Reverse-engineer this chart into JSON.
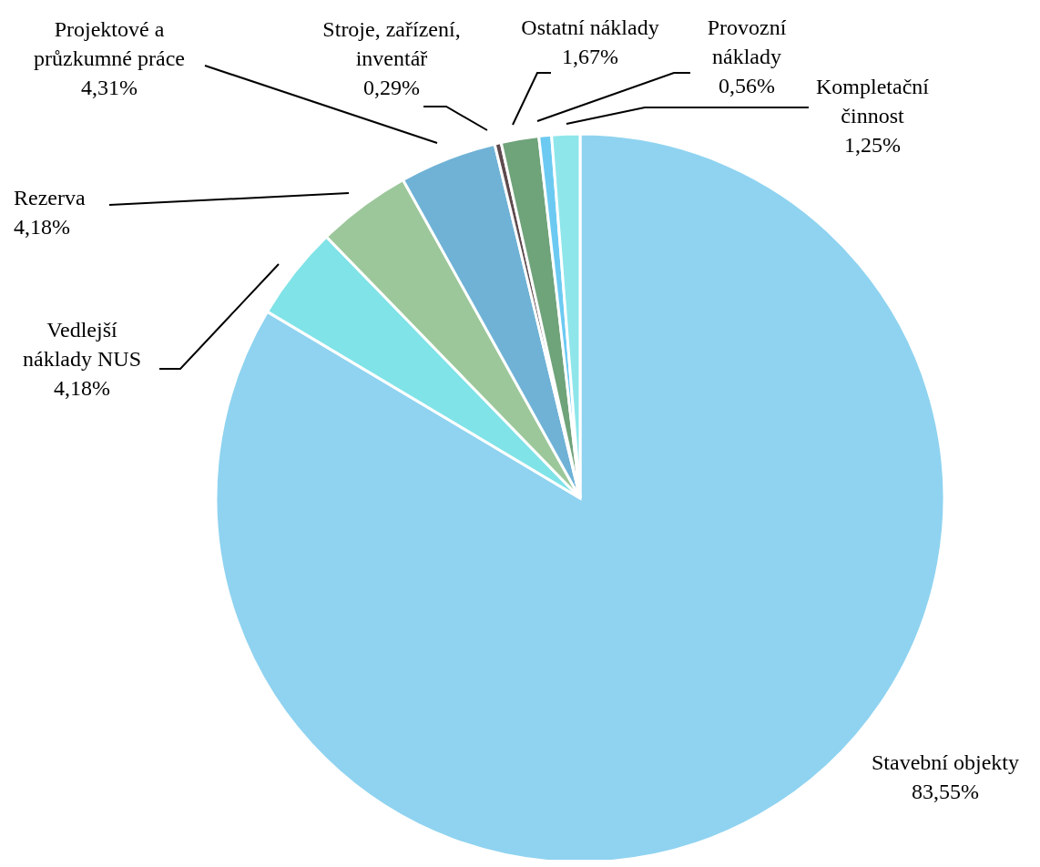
{
  "chart_data": {
    "type": "pie",
    "categories": [
      "Stavební objekty",
      "Vedlejší náklady NUS",
      "Rezerva",
      "Projektové a průzkumné práce",
      "Stroje, zařízení, inventář",
      "Ostatní náklady",
      "Provozní náklady",
      "Kompletační činnost"
    ],
    "values": [
      83.55,
      4.18,
      4.18,
      4.31,
      0.29,
      1.67,
      0.56,
      1.25
    ],
    "value_labels": [
      "83,55%",
      "4,18%",
      "4,18%",
      "4,31%",
      "0,29%",
      "1,67%",
      "0,56%",
      "1,25%"
    ],
    "colors": [
      "#8fd3f0",
      "#7fe3e8",
      "#9cc79a",
      "#6fb2d6",
      "#5e4a4e",
      "#6fa37a",
      "#6ccaf2",
      "#8ee6ea"
    ]
  }
}
